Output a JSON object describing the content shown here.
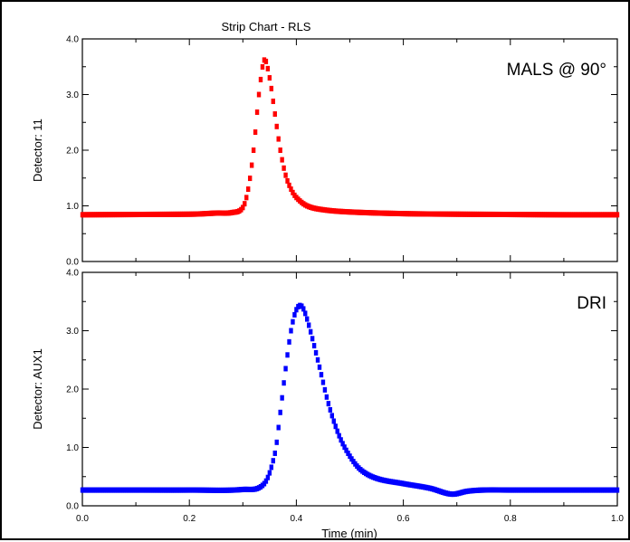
{
  "chart_data": {
    "type": "scatter",
    "title": "Strip Chart - RLS",
    "xlabel": "Time (min)",
    "xlim": [
      0.0,
      1.0
    ],
    "x_ticks": [
      "0.0",
      "0.2",
      "0.4",
      "0.6",
      "0.8",
      "1.0"
    ],
    "grid": false,
    "panels": [
      {
        "ylabel": "Detector:  11",
        "ylim": [
          0.0,
          4.0
        ],
        "y_ticks": [
          "0.0",
          "1.0",
          "2.0",
          "3.0",
          "4.0"
        ],
        "annotation": "MALS @ 90°",
        "color": "#ff0000",
        "points": [
          [
            0.0,
            0.84
          ],
          [
            0.1,
            0.845
          ],
          [
            0.2,
            0.85
          ],
          [
            0.22,
            0.855
          ],
          [
            0.25,
            0.87
          ],
          [
            0.28,
            0.88
          ],
          [
            0.3,
            0.97
          ],
          [
            0.31,
            1.3
          ],
          [
            0.32,
            2.0
          ],
          [
            0.33,
            3.0
          ],
          [
            0.34,
            3.62
          ],
          [
            0.35,
            3.3
          ],
          [
            0.36,
            2.65
          ],
          [
            0.37,
            2.0
          ],
          [
            0.38,
            1.55
          ],
          [
            0.39,
            1.3
          ],
          [
            0.4,
            1.15
          ],
          [
            0.42,
            1.0
          ],
          [
            0.45,
            0.93
          ],
          [
            0.5,
            0.89
          ],
          [
            0.6,
            0.86
          ],
          [
            0.7,
            0.85
          ],
          [
            0.8,
            0.845
          ],
          [
            0.9,
            0.84
          ],
          [
            1.0,
            0.84
          ]
        ]
      },
      {
        "ylabel": "Detector:  AUX1",
        "ylim": [
          0.0,
          4.0
        ],
        "y_ticks": [
          "0.0",
          "1.0",
          "2.0",
          "3.0",
          "4.0"
        ],
        "annotation": "DRI",
        "color": "#0000ff",
        "points": [
          [
            0.0,
            0.27
          ],
          [
            0.1,
            0.27
          ],
          [
            0.2,
            0.27
          ],
          [
            0.3,
            0.28
          ],
          [
            0.34,
            0.38
          ],
          [
            0.36,
            0.9
          ],
          [
            0.37,
            1.6
          ],
          [
            0.38,
            2.35
          ],
          [
            0.39,
            3.0
          ],
          [
            0.4,
            3.36
          ],
          [
            0.41,
            3.42
          ],
          [
            0.42,
            3.2
          ],
          [
            0.44,
            2.5
          ],
          [
            0.46,
            1.75
          ],
          [
            0.48,
            1.2
          ],
          [
            0.5,
            0.85
          ],
          [
            0.52,
            0.62
          ],
          [
            0.55,
            0.47
          ],
          [
            0.6,
            0.38
          ],
          [
            0.65,
            0.3
          ],
          [
            0.69,
            0.2
          ],
          [
            0.72,
            0.25
          ],
          [
            0.75,
            0.27
          ],
          [
            0.8,
            0.27
          ],
          [
            1.0,
            0.27
          ]
        ]
      }
    ]
  }
}
